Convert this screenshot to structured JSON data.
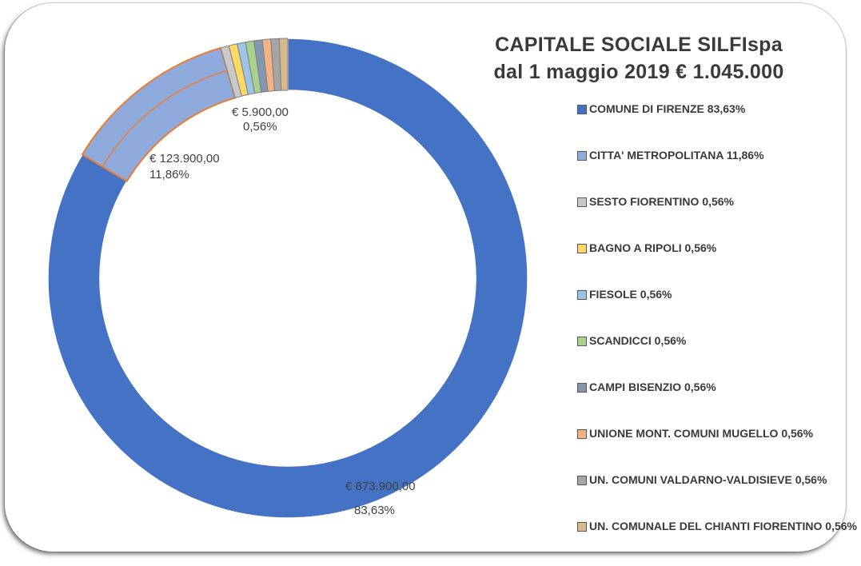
{
  "chart_data": {
    "type": "pie",
    "style": "donut",
    "title": "CAPITALE SOCIALE SILFIspa",
    "subtitle": "dal 1 maggio 2019  € 1.045.000",
    "legend_position": "right",
    "slices": [
      {
        "name": "COMUNE DI FIRENZE 83,63%",
        "value": 873900,
        "percent": 83.63,
        "color": "#4472c4",
        "label_amount": "€ 873.900,00",
        "label_percent": "83,63%"
      },
      {
        "name": "CITTA' METROPOLITANA 11,86%",
        "value": 123900,
        "percent": 11.86,
        "color": "#8faadc",
        "label_amount": "€ 123.900,00",
        "label_percent": "11,86%"
      },
      {
        "name": "SESTO FIORENTINO 0,56%",
        "value": 5900,
        "percent": 0.56,
        "color": "#c9c9c9",
        "label_amount": "€ 5.900,00",
        "label_percent": "0,56%"
      },
      {
        "name": "BAGNO A RIPOLI 0,56%",
        "value": 5900,
        "percent": 0.56,
        "color": "#ffd966"
      },
      {
        "name": "FIESOLE 0,56%",
        "value": 5900,
        "percent": 0.56,
        "color": "#9dc3e6"
      },
      {
        "name": "SCANDICCI 0,56%",
        "value": 5900,
        "percent": 0.56,
        "color": "#a9d18e"
      },
      {
        "name": "CAMPI BISENZIO 0,56%",
        "value": 5900,
        "percent": 0.56,
        "color": "#8497b0"
      },
      {
        "name": "UNIONE MONT. COMUNI MUGELLO 0,56%",
        "value": 5900,
        "percent": 0.56,
        "color": "#f4b183"
      },
      {
        "name": "UN. COMUNI VALDARNO-VALDISIEVE 0,56%",
        "value": 5900,
        "percent": 0.56,
        "color": "#a5a5a5"
      },
      {
        "name": "UN. COMUNALE DEL CHIANTI FIORENTINO 0,56%",
        "value": 5900,
        "percent": 0.56,
        "color": "#d6b98c"
      }
    ]
  },
  "colors": {
    "slice_border_main": "#ffffff",
    "slice_border_metro": "#ed7d31",
    "slice_border_small": "#7f7f7f"
  }
}
